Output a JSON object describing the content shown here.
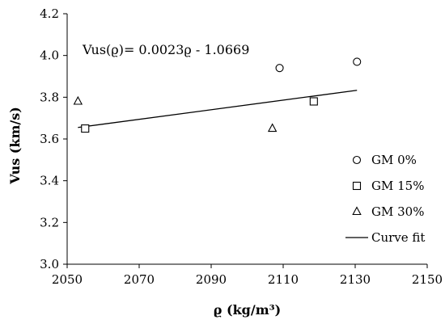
{
  "chart_data": {
    "type": "scatter",
    "xlabel": "ϱ (kg/m³)",
    "ylabel": "Vus (km/s)",
    "xlim": [
      2050,
      2150
    ],
    "ylim": [
      3.0,
      4.2
    ],
    "xticks": [
      "2050",
      "2070",
      "2090",
      "2110",
      "2130",
      "2150"
    ],
    "yticks": [
      "3.0",
      "3.2",
      "3.4",
      "3.6",
      "3.8",
      "4.0",
      "4.2"
    ],
    "grid": false,
    "legend_position": "bottom-right",
    "series": [
      {
        "name": "GM 0%",
        "marker": "circle",
        "points": [
          [
            2109,
            3.94
          ],
          [
            2130.5,
            3.97
          ]
        ]
      },
      {
        "name": "GM 15%",
        "marker": "square",
        "points": [
          [
            2055,
            3.65
          ],
          [
            2118.5,
            3.78
          ]
        ]
      },
      {
        "name": "GM 30%",
        "marker": "triangle",
        "points": [
          [
            2053,
            3.78
          ],
          [
            2107,
            3.65
          ]
        ]
      }
    ],
    "fit": {
      "name": "Curve fit",
      "equation": "Vus(ϱ)= 0.0023ϱ - 1.0669",
      "x_range": [
        2053,
        2130.5
      ],
      "slope": 0.0023,
      "intercept": -1.0669
    }
  }
}
